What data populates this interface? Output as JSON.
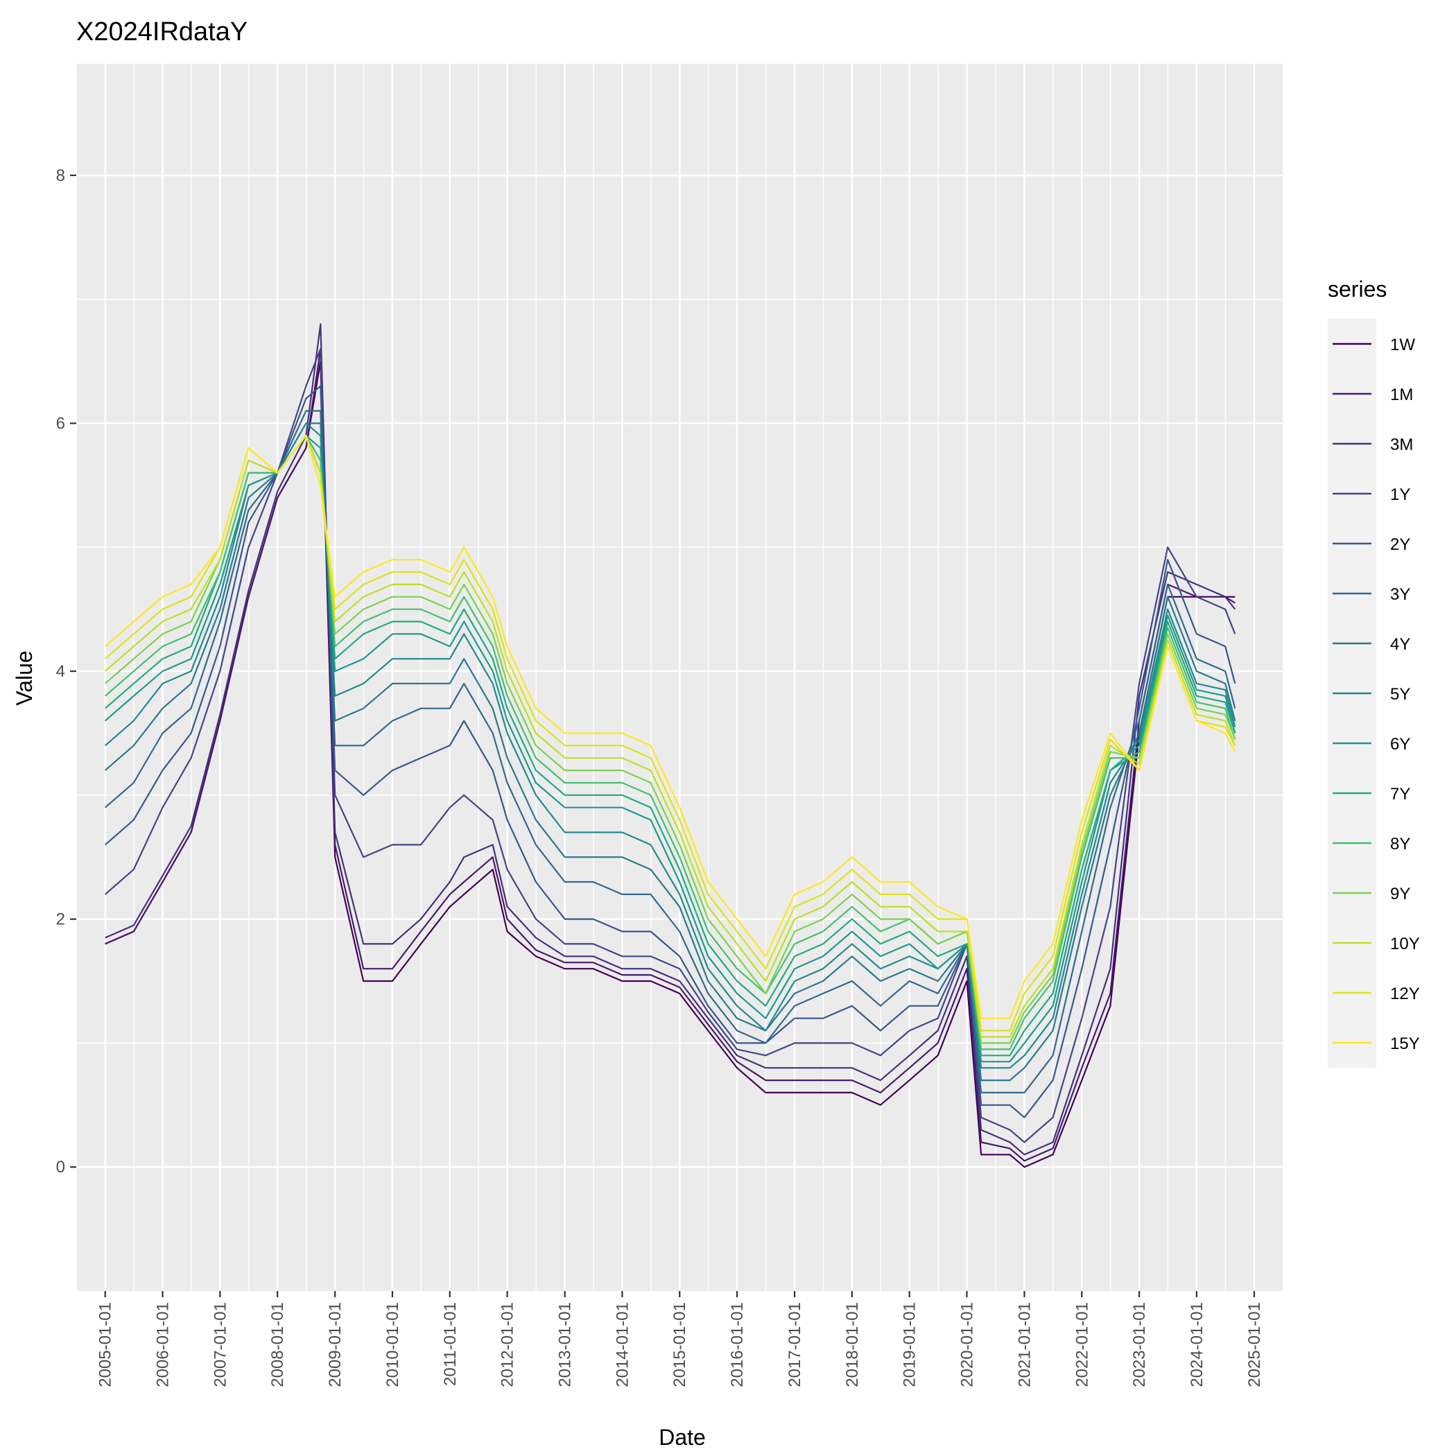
{
  "chart_data": {
    "type": "line",
    "title": "X2024IRdataY",
    "xlabel": "Date",
    "ylabel": "Value",
    "x_ticks": [
      "2005-01-01",
      "2006-01-01",
      "2007-01-01",
      "2008-01-01",
      "2009-01-01",
      "2010-01-01",
      "2011-01-01",
      "2012-01-01",
      "2013-01-01",
      "2014-01-01",
      "2015-01-01",
      "2016-01-01",
      "2017-01-01",
      "2018-01-01",
      "2019-01-01",
      "2020-01-01",
      "2021-01-01",
      "2022-01-01",
      "2023-01-01",
      "2024-01-01",
      "2025-01-01"
    ],
    "y_ticks": [
      0,
      2,
      4,
      6,
      8
    ],
    "xlim": [
      "2004-07-01",
      "2025-07-01"
    ],
    "ylim": [
      -1.0,
      8.9
    ],
    "grid": true,
    "legend": {
      "title": "series",
      "position": "right"
    },
    "x": [
      "2005-01-01",
      "2005-07-01",
      "2006-01-01",
      "2006-07-01",
      "2007-01-01",
      "2007-07-01",
      "2008-01-01",
      "2008-07-01",
      "2008-10-01",
      "2009-01-01",
      "2009-07-01",
      "2010-01-01",
      "2010-07-01",
      "2011-01-01",
      "2011-04-01",
      "2011-10-01",
      "2012-01-01",
      "2012-07-01",
      "2013-01-01",
      "2013-07-01",
      "2014-01-01",
      "2014-07-01",
      "2015-01-01",
      "2015-07-01",
      "2016-01-01",
      "2016-07-01",
      "2017-01-01",
      "2017-07-01",
      "2018-01-01",
      "2018-07-01",
      "2019-01-01",
      "2019-07-01",
      "2020-01-01",
      "2020-04-01",
      "2020-10-01",
      "2021-01-01",
      "2021-07-01",
      "2022-01-01",
      "2022-07-01",
      "2023-01-01",
      "2023-07-01",
      "2024-01-01",
      "2024-07-01",
      "2024-09-01"
    ],
    "series": [
      {
        "name": "1W",
        "color": "#440154",
        "values": [
          1.8,
          1.9,
          2.3,
          2.7,
          3.6,
          4.6,
          5.4,
          5.8,
          6.5,
          2.5,
          1.5,
          1.5,
          1.8,
          2.1,
          2.2,
          2.4,
          1.9,
          1.7,
          1.6,
          1.6,
          1.5,
          1.5,
          1.4,
          1.1,
          0.8,
          0.6,
          0.6,
          0.6,
          0.6,
          0.5,
          0.7,
          0.9,
          1.5,
          0.1,
          0.1,
          0.0,
          0.1,
          0.7,
          1.3,
          3.5,
          4.6,
          4.6,
          4.6,
          4.6
        ]
      },
      {
        "name": "1M",
        "color": "#481A6C",
        "values": [
          1.8,
          1.9,
          2.3,
          2.7,
          3.6,
          4.6,
          5.4,
          5.8,
          6.6,
          2.6,
          1.6,
          1.6,
          1.9,
          2.2,
          2.3,
          2.5,
          2.0,
          1.75,
          1.65,
          1.65,
          1.55,
          1.55,
          1.45,
          1.15,
          0.85,
          0.7,
          0.7,
          0.7,
          0.7,
          0.6,
          0.8,
          1.0,
          1.6,
          0.2,
          0.15,
          0.05,
          0.15,
          0.8,
          1.4,
          3.6,
          4.7,
          4.6,
          4.6,
          4.55
        ]
      },
      {
        "name": "3M",
        "color": "#472F7D",
        "values": [
          1.85,
          1.95,
          2.35,
          2.75,
          3.65,
          4.65,
          5.45,
          5.9,
          6.8,
          2.7,
          1.8,
          1.8,
          2.0,
          2.3,
          2.5,
          2.6,
          2.1,
          1.85,
          1.7,
          1.7,
          1.6,
          1.6,
          1.5,
          1.2,
          0.9,
          0.8,
          0.8,
          0.8,
          0.8,
          0.7,
          0.9,
          1.1,
          1.7,
          0.3,
          0.2,
          0.1,
          0.2,
          0.9,
          1.6,
          3.8,
          4.8,
          4.7,
          4.6,
          4.5
        ]
      },
      {
        "name": "1Y",
        "color": "#414487",
        "values": [
          2.2,
          2.4,
          2.9,
          3.3,
          4.0,
          5.0,
          5.6,
          6.3,
          6.6,
          3.0,
          2.5,
          2.6,
          2.6,
          2.9,
          3.0,
          2.8,
          2.4,
          2.0,
          1.8,
          1.8,
          1.7,
          1.7,
          1.6,
          1.25,
          0.95,
          0.9,
          1.0,
          1.0,
          1.0,
          0.9,
          1.1,
          1.2,
          1.8,
          0.4,
          0.3,
          0.2,
          0.4,
          1.2,
          2.1,
          3.9,
          5.0,
          4.6,
          4.5,
          4.3
        ]
      },
      {
        "name": "2Y",
        "color": "#39568C",
        "values": [
          2.6,
          2.8,
          3.2,
          3.5,
          4.2,
          5.2,
          5.6,
          6.2,
          6.3,
          3.2,
          3.0,
          3.2,
          3.3,
          3.4,
          3.6,
          3.2,
          2.8,
          2.3,
          2.0,
          2.0,
          1.9,
          1.9,
          1.7,
          1.3,
          1.0,
          1.0,
          1.2,
          1.2,
          1.3,
          1.1,
          1.3,
          1.3,
          1.8,
          0.5,
          0.5,
          0.4,
          0.7,
          1.6,
          2.6,
          3.7,
          4.9,
          4.3,
          4.2,
          3.9
        ]
      },
      {
        "name": "3Y",
        "color": "#31688E",
        "values": [
          2.9,
          3.1,
          3.5,
          3.7,
          4.4,
          5.3,
          5.6,
          6.1,
          6.1,
          3.4,
          3.4,
          3.6,
          3.7,
          3.7,
          3.9,
          3.5,
          3.1,
          2.6,
          2.3,
          2.3,
          2.2,
          2.2,
          1.9,
          1.4,
          1.1,
          1.0,
          1.3,
          1.4,
          1.5,
          1.3,
          1.5,
          1.4,
          1.8,
          0.6,
          0.6,
          0.6,
          0.9,
          1.9,
          2.9,
          3.6,
          4.7,
          4.1,
          4.0,
          3.7
        ]
      },
      {
        "name": "4Y",
        "color": "#2A788E",
        "values": [
          3.2,
          3.4,
          3.7,
          3.9,
          4.5,
          5.4,
          5.6,
          6.0,
          6.0,
          3.6,
          3.7,
          3.9,
          3.9,
          3.9,
          4.1,
          3.7,
          3.3,
          2.8,
          2.5,
          2.5,
          2.5,
          2.4,
          2.1,
          1.5,
          1.2,
          1.1,
          1.4,
          1.5,
          1.7,
          1.5,
          1.6,
          1.5,
          1.8,
          0.7,
          0.7,
          0.8,
          1.1,
          2.1,
          3.0,
          3.5,
          4.6,
          4.0,
          3.9,
          3.6
        ]
      },
      {
        "name": "5Y",
        "color": "#23888E",
        "values": [
          3.4,
          3.6,
          3.9,
          4.0,
          4.6,
          5.5,
          5.6,
          6.0,
          5.9,
          3.8,
          3.9,
          4.1,
          4.1,
          4.1,
          4.3,
          3.9,
          3.5,
          3.0,
          2.7,
          2.7,
          2.7,
          2.6,
          2.2,
          1.6,
          1.3,
          1.1,
          1.5,
          1.6,
          1.8,
          1.6,
          1.7,
          1.6,
          1.8,
          0.8,
          0.8,
          0.9,
          1.2,
          2.2,
          3.1,
          3.45,
          4.5,
          3.9,
          3.85,
          3.55
        ]
      },
      {
        "name": "6Y",
        "color": "#1F988B",
        "values": [
          3.6,
          3.8,
          4.0,
          4.1,
          4.7,
          5.5,
          5.6,
          5.9,
          5.8,
          4.0,
          4.1,
          4.3,
          4.3,
          4.2,
          4.4,
          4.0,
          3.6,
          3.1,
          2.9,
          2.9,
          2.9,
          2.8,
          2.3,
          1.7,
          1.4,
          1.2,
          1.6,
          1.7,
          1.9,
          1.7,
          1.8,
          1.6,
          1.8,
          0.85,
          0.85,
          1.0,
          1.3,
          2.3,
          3.2,
          3.4,
          4.45,
          3.85,
          3.8,
          3.5
        ]
      },
      {
        "name": "7Y",
        "color": "#22A884",
        "values": [
          3.7,
          3.9,
          4.1,
          4.2,
          4.8,
          5.6,
          5.6,
          5.9,
          5.7,
          4.1,
          4.3,
          4.4,
          4.4,
          4.3,
          4.5,
          4.1,
          3.7,
          3.2,
          3.0,
          3.0,
          3.0,
          2.9,
          2.4,
          1.8,
          1.5,
          1.3,
          1.7,
          1.8,
          2.0,
          1.8,
          1.9,
          1.7,
          1.8,
          0.9,
          0.9,
          1.1,
          1.4,
          2.4,
          3.2,
          3.35,
          4.4,
          3.8,
          3.75,
          3.5
        ]
      },
      {
        "name": "8Y",
        "color": "#44BF70",
        "values": [
          3.8,
          4.0,
          4.2,
          4.3,
          4.8,
          5.6,
          5.6,
          5.9,
          5.7,
          4.2,
          4.4,
          4.5,
          4.5,
          4.4,
          4.6,
          4.2,
          3.8,
          3.3,
          3.1,
          3.1,
          3.1,
          3.0,
          2.5,
          1.9,
          1.6,
          1.4,
          1.8,
          1.9,
          2.1,
          1.9,
          2.0,
          1.8,
          1.9,
          0.95,
          0.95,
          1.2,
          1.5,
          2.5,
          3.3,
          3.3,
          4.35,
          3.75,
          3.7,
          3.45
        ]
      },
      {
        "name": "9Y",
        "color": "#7AD151",
        "values": [
          3.9,
          4.1,
          4.3,
          4.4,
          4.9,
          5.7,
          5.6,
          5.9,
          5.6,
          4.3,
          4.5,
          4.6,
          4.6,
          4.5,
          4.7,
          4.3,
          3.9,
          3.4,
          3.2,
          3.2,
          3.2,
          3.1,
          2.6,
          2.0,
          1.7,
          1.4,
          1.9,
          2.0,
          2.2,
          2.0,
          2.0,
          1.8,
          1.9,
          1.0,
          1.0,
          1.25,
          1.55,
          2.55,
          3.35,
          3.3,
          4.3,
          3.7,
          3.65,
          3.45
        ]
      },
      {
        "name": "10Y",
        "color": "#BDDF26",
        "values": [
          4.0,
          4.2,
          4.4,
          4.5,
          4.9,
          5.7,
          5.6,
          5.9,
          5.6,
          4.4,
          4.6,
          4.7,
          4.7,
          4.6,
          4.8,
          4.4,
          4.0,
          3.5,
          3.3,
          3.3,
          3.3,
          3.2,
          2.7,
          2.1,
          1.8,
          1.5,
          2.0,
          2.1,
          2.3,
          2.1,
          2.1,
          1.9,
          1.9,
          1.05,
          1.05,
          1.3,
          1.6,
          2.6,
          3.4,
          3.25,
          4.25,
          3.65,
          3.6,
          3.4
        ]
      },
      {
        "name": "12Y",
        "color": "#DCE318",
        "values": [
          4.1,
          4.3,
          4.5,
          4.6,
          5.0,
          5.8,
          5.6,
          5.9,
          5.5,
          4.5,
          4.7,
          4.8,
          4.8,
          4.7,
          4.9,
          4.5,
          4.1,
          3.6,
          3.4,
          3.4,
          3.4,
          3.3,
          2.8,
          2.2,
          1.9,
          1.6,
          2.1,
          2.2,
          2.4,
          2.2,
          2.2,
          2.0,
          2.0,
          1.1,
          1.1,
          1.4,
          1.7,
          2.7,
          3.45,
          3.2,
          4.2,
          3.6,
          3.55,
          3.4
        ]
      },
      {
        "name": "15Y",
        "color": "#FDE725",
        "values": [
          4.2,
          4.4,
          4.6,
          4.7,
          5.0,
          5.8,
          5.6,
          5.9,
          5.5,
          4.6,
          4.8,
          4.9,
          4.9,
          4.8,
          5.0,
          4.6,
          4.2,
          3.7,
          3.5,
          3.5,
          3.5,
          3.4,
          2.9,
          2.3,
          2.0,
          1.7,
          2.2,
          2.3,
          2.5,
          2.3,
          2.3,
          2.1,
          2.0,
          1.2,
          1.2,
          1.5,
          1.8,
          2.8,
          3.5,
          3.2,
          4.2,
          3.6,
          3.5,
          3.35
        ]
      }
    ]
  }
}
